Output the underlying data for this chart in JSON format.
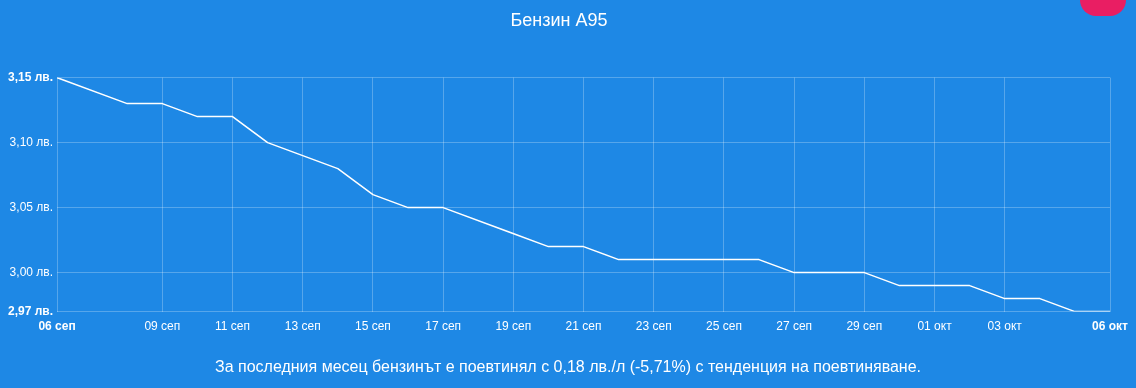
{
  "chart_data": {
    "type": "line",
    "title": "Бензин А95",
    "x": [
      "--09-06",
      "--09-08",
      "--09-09",
      "--09-10",
      "--09-11",
      "--09-12",
      "--09-14",
      "--09-15",
      "--09-16",
      "--09-17",
      "--09-20",
      "--09-21",
      "--09-22",
      "--09-26",
      "--09-27",
      "--09-29",
      "--09-30",
      "--10-02",
      "--10-03",
      "--10-04",
      "--10-05",
      "--10-06"
    ],
    "series": [
      {
        "color": "#ffffff",
        "values": [
          3.15,
          3.13,
          3.13,
          3.12,
          3.12,
          3.1,
          3.08,
          3.06,
          3.05,
          3.05,
          3.02,
          3.02,
          3.01,
          3.01,
          3.0,
          3.0,
          2.99,
          2.99,
          2.98,
          2.98,
          2.97,
          2.97
        ]
      }
    ],
    "xlim": [
      "--09-06",
      "--10-06"
    ],
    "xticks": [
      {
        "value": "--09-06",
        "label": "06 сеп"
      },
      {
        "value": "--09-09",
        "label": "09 сеп"
      },
      {
        "value": "--09-11",
        "label": "11 сеп"
      },
      {
        "value": "--09-13",
        "label": "13 сеп"
      },
      {
        "value": "--09-15",
        "label": "15 сеп"
      },
      {
        "value": "--09-17",
        "label": "17 сеп"
      },
      {
        "value": "--09-19",
        "label": "19 сеп"
      },
      {
        "value": "--09-21",
        "label": "21 сеп"
      },
      {
        "value": "--09-23",
        "label": "23 сеп"
      },
      {
        "value": "--09-25",
        "label": "25 сеп"
      },
      {
        "value": "--09-27",
        "label": "27 сеп"
      },
      {
        "value": "--09-29",
        "label": "29 сеп"
      },
      {
        "value": "--10-01",
        "label": "01 окт"
      },
      {
        "value": "--10-03",
        "label": "03 окт"
      },
      {
        "value": "--10-06",
        "label": "06 окт"
      }
    ],
    "ylim": [
      2.97,
      3.15
    ],
    "yticks": [
      {
        "value": 2.97,
        "label": "2,97 лв."
      },
      {
        "value": 3.0,
        "label": "3,00 лв."
      },
      {
        "value": 3.05,
        "label": "3,05 лв."
      },
      {
        "value": 3.1,
        "label": "3,10 лв."
      },
      {
        "value": 3.15,
        "label": "3,15 лв."
      }
    ],
    "grid": true,
    "marker": "none",
    "line_style": "solid",
    "legend": false,
    "annotations": [
      "За последния месец бензинът е поевтинял с 0,18 лв./л (-5,71%) с тенденция на поевтиняване."
    ]
  }
}
